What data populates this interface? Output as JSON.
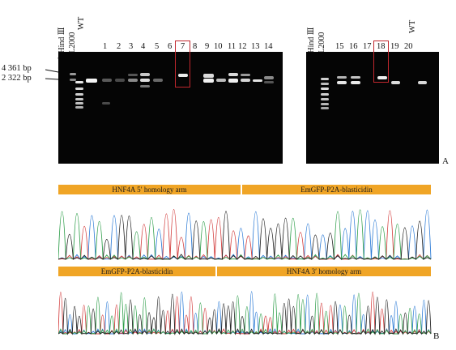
{
  "panel_a": {
    "left_gel": {
      "ladder_labels": [
        "λ Hind Ⅲ",
        "DL2000"
      ],
      "lanes": [
        "WT",
        "1",
        "2",
        "3",
        "4",
        "5",
        "6",
        "7",
        "8",
        "9",
        "10",
        "11",
        "12",
        "13",
        "14"
      ],
      "highlighted_lane": "7"
    },
    "right_gel": {
      "ladder_labels": [
        "λ Hind Ⅲ",
        "DL2000"
      ],
      "lanes": [
        "15",
        "16",
        "17",
        "18",
        "19",
        "20",
        "WT"
      ],
      "highlighted_lane": "18"
    },
    "size_markers": [
      "4 361 bp",
      "2 322 bp"
    ],
    "panel_label": "A",
    "highlight_color": "#c1272d"
  },
  "panel_b": {
    "trace_1": {
      "bars": [
        "HNF4A 5′ homology arm",
        "EmGFP-P2A-blasticidin"
      ]
    },
    "trace_2": {
      "bars": [
        "EmGFP-P2A-blasticidin",
        "HNF4A 3′ homology arm"
      ]
    },
    "panel_label": "B",
    "bar_color": "#f0a526",
    "trace_colors": [
      "#2c7bd6",
      "#d23b3b",
      "#2e9e4a",
      "#222222"
    ]
  }
}
